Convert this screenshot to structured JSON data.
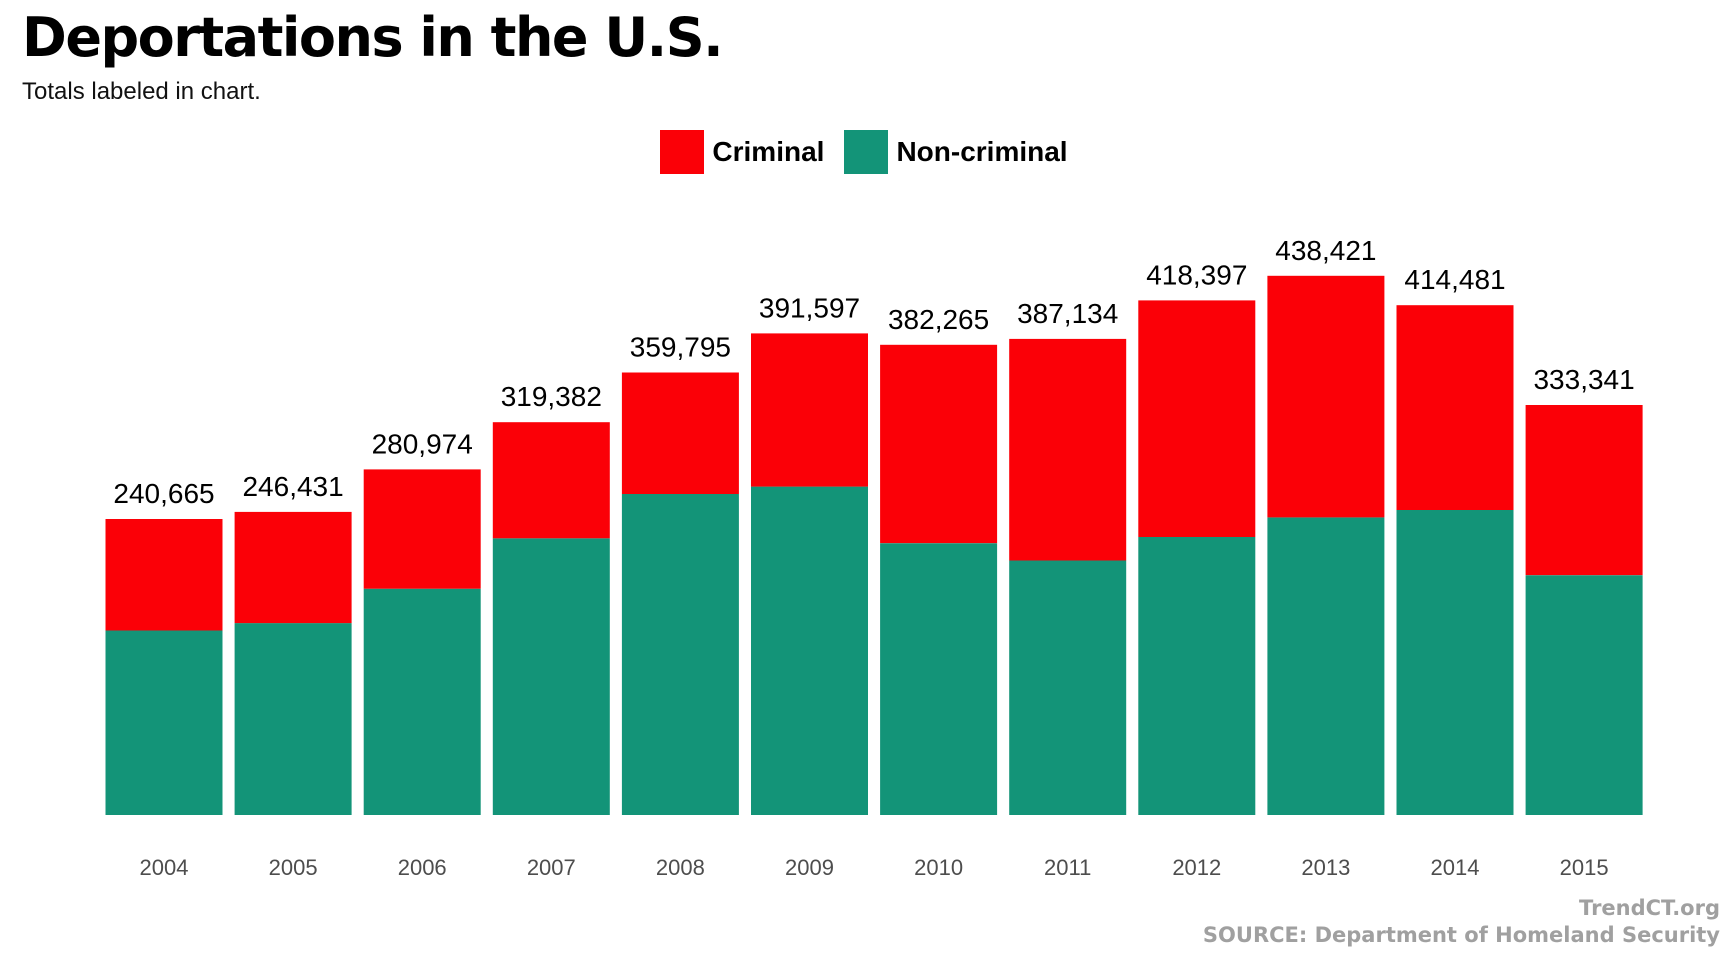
{
  "chart_data": {
    "type": "bar",
    "stacked": true,
    "title": "Deportations in the U.S.",
    "subtitle": "Totals labeled in chart.",
    "categories": [
      "2004",
      "2005",
      "2006",
      "2007",
      "2008",
      "2009",
      "2010",
      "2011",
      "2012",
      "2013",
      "2014",
      "2015"
    ],
    "series": [
      {
        "name": "Non-criminal",
        "color": "#139478",
        "values": [
          150000,
          156000,
          184000,
          225000,
          261000,
          267000,
          221000,
          207000,
          226000,
          242000,
          248000,
          195000
        ]
      },
      {
        "name": "Criminal",
        "color": "#fb0007",
        "values": [
          90665,
          90431,
          96974,
          94382,
          98795,
          124597,
          161265,
          180134,
          192397,
          196421,
          166481,
          138341
        ]
      }
    ],
    "totals": [
      240665,
      246431,
      280974,
      319382,
      359795,
      391597,
      382265,
      387134,
      418397,
      438421,
      414481,
      333341
    ],
    "total_labels": [
      "240,665",
      "246,431",
      "280,974",
      "319,382",
      "359,795",
      "391,597",
      "382,265",
      "387,134",
      "418,397",
      "438,421",
      "414,481",
      "333,341"
    ],
    "legend": {
      "position": "top-center",
      "entries": [
        {
          "label": "Criminal",
          "color": "#fb0007"
        },
        {
          "label": "Non-criminal",
          "color": "#139478"
        }
      ]
    },
    "xlabel": "",
    "ylabel": "",
    "ylim": [
      0,
      480000
    ],
    "grid": false,
    "y_axis_visible": false
  },
  "footer": {
    "credit": "TrendCT.org",
    "source": "SOURCE: Department of Homeland Security"
  }
}
